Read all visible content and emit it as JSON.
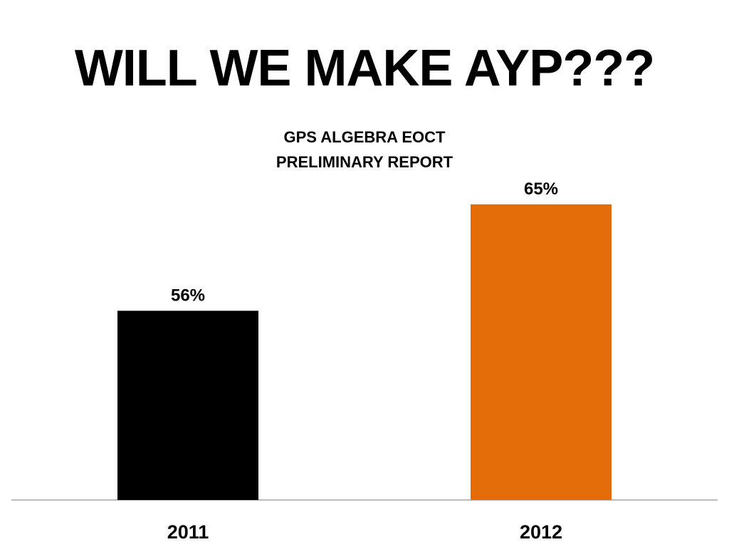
{
  "slide": {
    "title": "WILL WE MAKE AYP???"
  },
  "chart_data": {
    "type": "bar",
    "title_lines": [
      "GPS ALGEBRA EOCT",
      "PRELIMINARY REPORT"
    ],
    "categories": [
      "2011",
      "2012"
    ],
    "values": [
      56,
      65
    ],
    "value_labels": [
      "56%",
      "65%"
    ],
    "colors": [
      "#000000",
      "#E36C09"
    ],
    "xlabel": "",
    "ylabel": "",
    "ylim": [
      40,
      66.5
    ],
    "grid": false,
    "legend": "none"
  }
}
